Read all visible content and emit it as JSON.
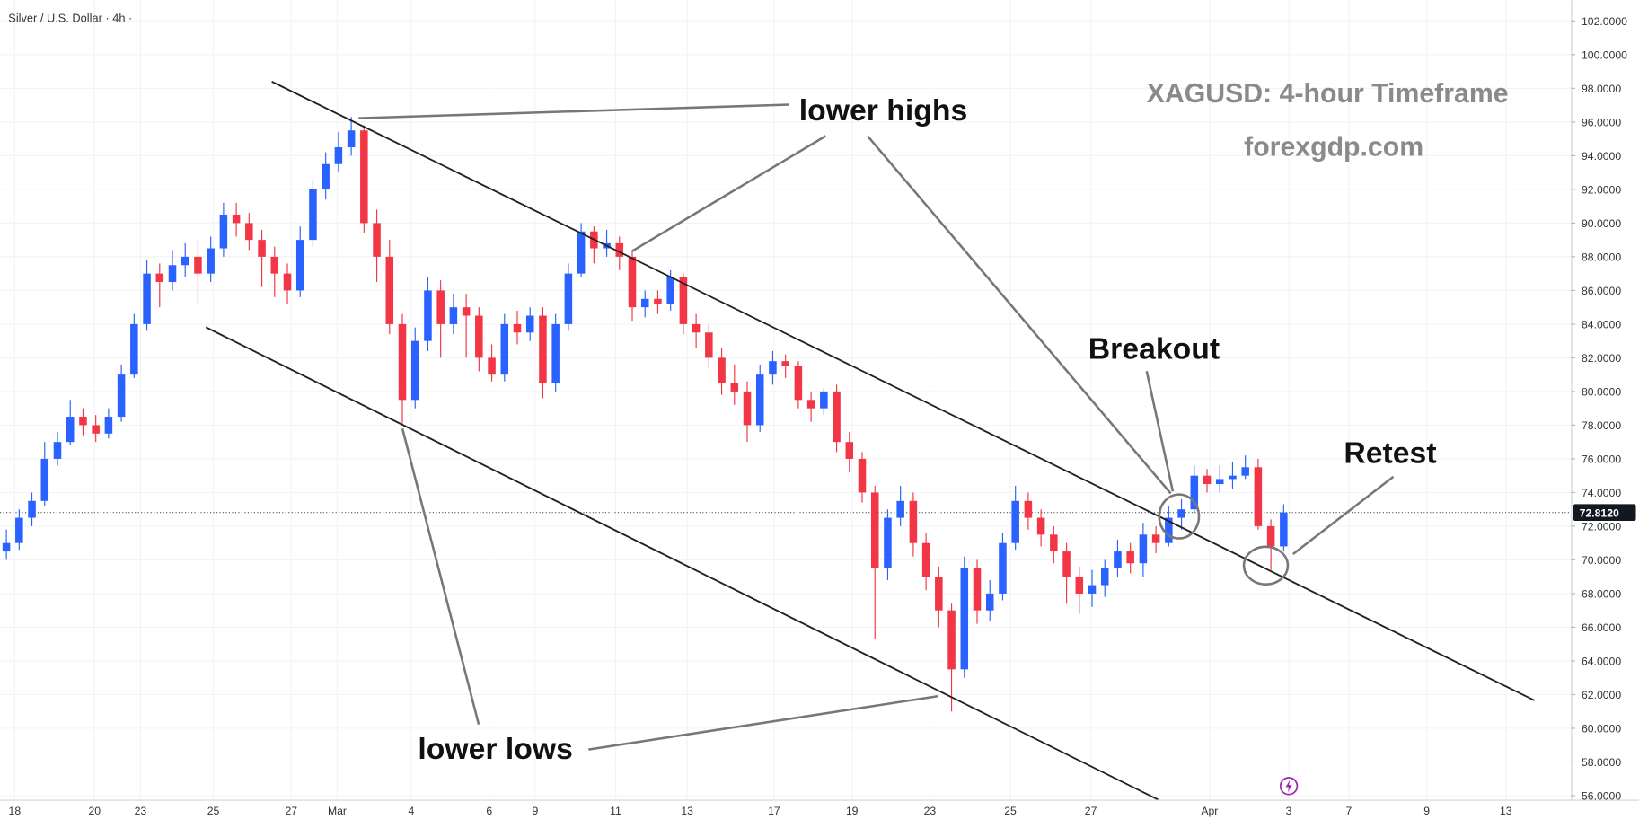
{
  "chart_data": {
    "type": "candlestick",
    "title": "Silver / U.S. Dollar · 4h ·",
    "annotations": [
      "XAGUSD: 4-hour Timeframe",
      "forexgdp.com",
      "lower highs",
      "lower lows",
      "Breakout",
      "Retest"
    ],
    "up_color": "#2962ff",
    "down_color": "#f23645",
    "open": [
      70.5,
      71.0,
      72.5,
      73.5,
      76.0,
      77.0,
      78.5,
      78.0,
      77.5,
      78.5,
      81.0,
      84.0,
      87.0,
      86.5,
      87.5,
      88.0,
      87.0,
      88.5,
      90.5,
      90.0,
      89.0,
      88.0,
      87.0,
      86.0,
      89.0,
      92.0,
      93.5,
      94.5,
      95.5,
      90.0,
      88.0,
      84.0,
      79.5,
      83.0,
      86.0,
      84.0,
      85.0,
      84.5,
      82.0,
      81.0,
      84.0,
      83.5,
      84.5,
      80.5,
      84.0,
      87.0,
      89.5,
      88.5,
      88.8,
      88.0,
      85.0,
      85.5,
      85.2,
      86.8,
      84.0,
      83.5,
      82.0,
      80.5,
      80.0,
      78.0,
      81.0,
      81.8,
      81.5,
      79.5,
      79.0,
      80.0,
      77.0,
      76.0,
      74.0,
      69.5,
      72.5,
      73.5,
      71.0,
      69.0,
      67.0,
      63.5,
      69.5,
      67.0,
      68.0,
      71.0,
      73.5,
      72.5,
      71.5,
      70.5,
      69.0,
      68.0,
      68.5,
      69.5,
      70.5,
      69.8,
      71.5,
      71.0,
      72.5,
      73.0,
      75.0,
      74.5,
      74.8,
      75.0,
      75.5,
      72.0,
      70.8
    ],
    "high": [
      71.8,
      73.0,
      74.0,
      77.0,
      77.6,
      79.5,
      79.0,
      78.6,
      79.0,
      81.6,
      84.6,
      87.8,
      87.6,
      88.4,
      88.8,
      89.0,
      89.2,
      91.2,
      91.2,
      90.6,
      89.6,
      88.6,
      87.6,
      89.8,
      92.6,
      94.2,
      95.4,
      96.3,
      95.8,
      90.8,
      89.0,
      84.6,
      83.8,
      86.8,
      86.6,
      85.8,
      85.8,
      85.0,
      82.8,
      84.6,
      84.8,
      85.0,
      85.0,
      84.6,
      87.6,
      90.0,
      89.8,
      89.6,
      89.2,
      88.4,
      86.0,
      86.0,
      87.2,
      87.0,
      84.6,
      84.0,
      82.6,
      81.6,
      80.6,
      81.6,
      82.4,
      82.2,
      81.8,
      80.0,
      80.2,
      80.4,
      77.6,
      76.4,
      74.4,
      73.0,
      74.4,
      74.0,
      71.6,
      69.6,
      67.4,
      70.2,
      70.0,
      68.8,
      71.6,
      74.4,
      74.0,
      73.0,
      72.0,
      71.0,
      69.6,
      69.4,
      70.0,
      71.2,
      71.0,
      72.2,
      72.0,
      73.2,
      73.6,
      75.6,
      75.4,
      75.6,
      75.8,
      76.2,
      76.0,
      72.4,
      73.3
    ],
    "low": [
      70.0,
      70.6,
      72.0,
      73.2,
      75.6,
      76.8,
      77.4,
      77.0,
      77.2,
      78.2,
      80.8,
      83.6,
      85.0,
      86.0,
      86.8,
      85.2,
      86.5,
      88.0,
      89.2,
      88.4,
      86.2,
      85.6,
      85.2,
      85.6,
      88.6,
      91.4,
      93.0,
      94.0,
      89.4,
      86.5,
      83.4,
      78.0,
      79.0,
      82.4,
      82.0,
      83.4,
      82.0,
      81.2,
      80.6,
      80.6,
      82.8,
      83.0,
      79.6,
      80.0,
      83.6,
      86.8,
      87.6,
      88.0,
      87.2,
      84.2,
      84.4,
      84.6,
      84.8,
      83.4,
      82.6,
      81.4,
      79.8,
      79.2,
      77.0,
      77.6,
      80.4,
      80.8,
      79.0,
      78.2,
      78.6,
      76.4,
      75.2,
      73.4,
      65.3,
      68.8,
      72.0,
      70.2,
      68.2,
      66.0,
      61.0,
      63.0,
      66.2,
      66.4,
      67.6,
      70.6,
      71.8,
      70.8,
      69.8,
      67.4,
      66.8,
      67.2,
      67.8,
      69.0,
      69.2,
      69.0,
      70.4,
      70.8,
      71.8,
      72.8,
      74.0,
      74.0,
      74.2,
      74.8,
      71.8,
      69.4,
      70.5
    ],
    "close": [
      71.0,
      72.5,
      73.5,
      76.0,
      77.0,
      78.5,
      78.0,
      77.5,
      78.5,
      81.0,
      84.0,
      87.0,
      86.5,
      87.5,
      88.0,
      87.0,
      88.5,
      90.5,
      90.0,
      89.0,
      88.0,
      87.0,
      86.0,
      89.0,
      92.0,
      93.5,
      94.5,
      95.5,
      90.0,
      88.0,
      84.0,
      79.5,
      83.0,
      86.0,
      84.0,
      85.0,
      84.5,
      82.0,
      81.0,
      84.0,
      83.5,
      84.5,
      80.5,
      84.0,
      87.0,
      89.5,
      88.5,
      88.8,
      88.0,
      85.0,
      85.5,
      85.2,
      86.8,
      84.0,
      83.5,
      82.0,
      80.5,
      80.0,
      78.0,
      81.0,
      81.8,
      81.5,
      79.5,
      79.0,
      80.0,
      77.0,
      76.0,
      74.0,
      69.5,
      72.5,
      73.5,
      71.0,
      69.0,
      67.0,
      63.5,
      69.5,
      67.0,
      68.0,
      71.0,
      73.5,
      72.5,
      71.5,
      70.5,
      69.0,
      68.0,
      68.5,
      69.5,
      70.5,
      69.8,
      71.5,
      71.0,
      72.5,
      73.0,
      75.0,
      74.5,
      74.8,
      75.0,
      75.5,
      72.0,
      70.8,
      72.812
    ],
    "last_price": {
      "value": 72.812,
      "label": "72.8120"
    },
    "xlim": [
      -0.5,
      122.5
    ],
    "ylim": [
      55.76,
      103.24
    ],
    "xticks": [
      {
        "value": 0.65,
        "label": "18"
      },
      {
        "value": 6.9,
        "label": "20"
      },
      {
        "value": 10.5,
        "label": "23"
      },
      {
        "value": 16.2,
        "label": "25"
      },
      {
        "value": 22.3,
        "label": "27"
      },
      {
        "value": 25.9,
        "label": "Mar"
      },
      {
        "value": 31.7,
        "label": "4"
      },
      {
        "value": 37.8,
        "label": "6"
      },
      {
        "value": 41.4,
        "label": "9"
      },
      {
        "value": 47.7,
        "label": "11"
      },
      {
        "value": 53.3,
        "label": "13"
      },
      {
        "value": 60.1,
        "label": "17"
      },
      {
        "value": 66.2,
        "label": "19"
      },
      {
        "value": 72.3,
        "label": "23"
      },
      {
        "value": 78.6,
        "label": "25"
      },
      {
        "value": 84.9,
        "label": "27"
      },
      {
        "value": 94.2,
        "label": "Apr"
      },
      {
        "value": 100.4,
        "label": "3"
      },
      {
        "value": 105.1,
        "label": "7"
      },
      {
        "value": 111.2,
        "label": "9"
      },
      {
        "value": 117.4,
        "label": "13"
      }
    ],
    "yticks": [
      {
        "value": 56,
        "label": "56.0000"
      },
      {
        "value": 58,
        "label": "58.0000"
      },
      {
        "value": 60,
        "label": "60.0000"
      },
      {
        "value": 62,
        "label": "62.0000"
      },
      {
        "value": 64,
        "label": "64.0000"
      },
      {
        "value": 66,
        "label": "66.0000"
      },
      {
        "value": 68,
        "label": "68.0000"
      },
      {
        "value": 70,
        "label": "70.0000"
      },
      {
        "value": 72,
        "label": "72.0000"
      },
      {
        "value": 74,
        "label": "74.0000"
      },
      {
        "value": 76,
        "label": "76.0000"
      },
      {
        "value": 78,
        "label": "78.0000"
      },
      {
        "value": 80,
        "label": "80.0000"
      },
      {
        "value": 82,
        "label": "82.0000"
      },
      {
        "value": 84,
        "label": "84.0000"
      },
      {
        "value": 86,
        "label": "86.0000"
      },
      {
        "value": 88,
        "label": "88.0000"
      },
      {
        "value": 90,
        "label": "90.0000"
      },
      {
        "value": 92,
        "label": "92.0000"
      },
      {
        "value": 94,
        "label": "94.0000"
      },
      {
        "value": 96,
        "label": "96.0000"
      },
      {
        "value": 98,
        "label": "98.0000"
      },
      {
        "value": 100,
        "label": "100.0000"
      },
      {
        "value": 102,
        "label": "102.0000"
      }
    ]
  }
}
